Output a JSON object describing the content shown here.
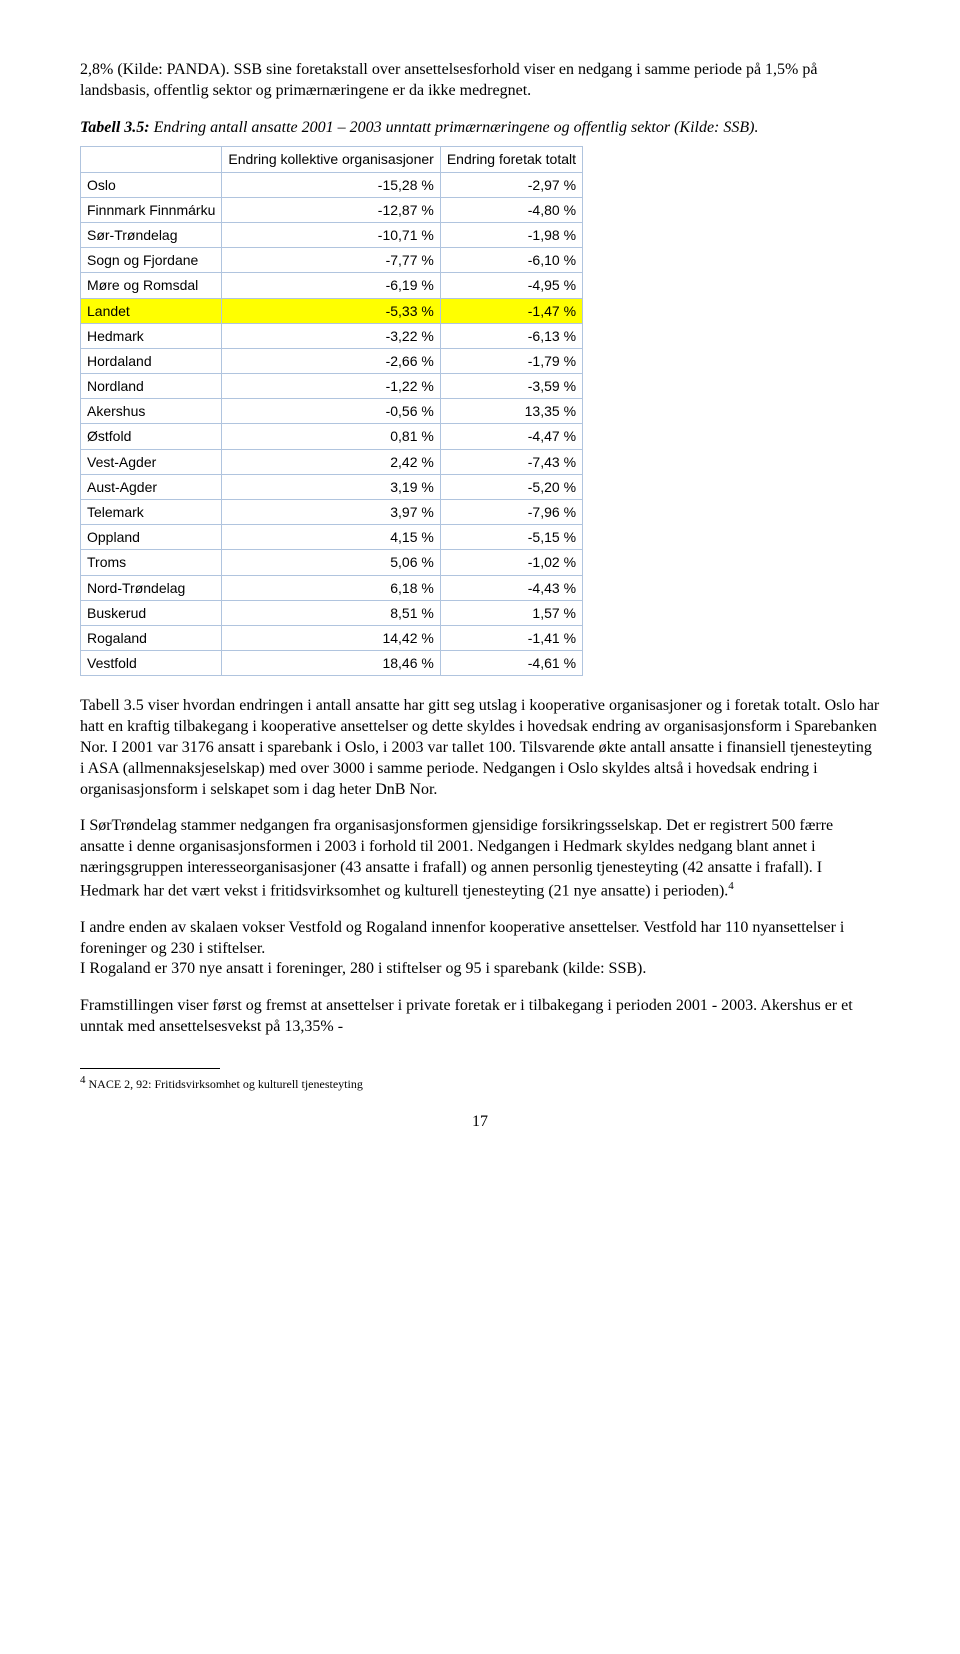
{
  "intro_para": "2,8% (Kilde: PANDA). SSB sine foretakstall over ansettelsesforhold viser en nedgang i samme periode på 1,5% på landsbasis, offentlig sektor og primærnæringene er da ikke medregnet.",
  "table_caption_bold": "Tabell 3.5:",
  "table_caption_rest": " Endring antall ansatte 2001 – 2003 unntatt primærnæringene og offentlig sektor (Kilde: SSB).",
  "table": {
    "col_headers": [
      "",
      "Endring kollektive organisasjoner",
      "Endring foretak totalt"
    ],
    "rows": [
      {
        "region": "Oslo",
        "col1": "-15,28 %",
        "col2": "-2,97 %",
        "hl": false
      },
      {
        "region": "Finnmark Finnmárku",
        "col1": "-12,87 %",
        "col2": "-4,80 %",
        "hl": false
      },
      {
        "region": "Sør-Trøndelag",
        "col1": "-10,71 %",
        "col2": "-1,98 %",
        "hl": false
      },
      {
        "region": "Sogn og Fjordane",
        "col1": "-7,77 %",
        "col2": "-6,10 %",
        "hl": false
      },
      {
        "region": "Møre og Romsdal",
        "col1": "-6,19 %",
        "col2": "-4,95 %",
        "hl": false
      },
      {
        "region": "Landet",
        "col1": "-5,33 %",
        "col2": "-1,47 %",
        "hl": true
      },
      {
        "region": "Hedmark",
        "col1": "-3,22 %",
        "col2": "-6,13 %",
        "hl": false
      },
      {
        "region": "Hordaland",
        "col1": "-2,66 %",
        "col2": "-1,79 %",
        "hl": false
      },
      {
        "region": "Nordland",
        "col1": "-1,22 %",
        "col2": "-3,59 %",
        "hl": false
      },
      {
        "region": "Akershus",
        "col1": "-0,56 %",
        "col2": "13,35 %",
        "hl": false
      },
      {
        "region": "Østfold",
        "col1": "0,81 %",
        "col2": "-4,47 %",
        "hl": false
      },
      {
        "region": "Vest-Agder",
        "col1": "2,42 %",
        "col2": "-7,43 %",
        "hl": false
      },
      {
        "region": "Aust-Agder",
        "col1": "3,19 %",
        "col2": "-5,20 %",
        "hl": false
      },
      {
        "region": "Telemark",
        "col1": "3,97 %",
        "col2": "-7,96 %",
        "hl": false
      },
      {
        "region": "Oppland",
        "col1": "4,15 %",
        "col2": "-5,15 %",
        "hl": false
      },
      {
        "region": "Troms",
        "col1": "5,06 %",
        "col2": "-1,02 %",
        "hl": false
      },
      {
        "region": "Nord-Trøndelag",
        "col1": "6,18 %",
        "col2": "-4,43 %",
        "hl": false
      },
      {
        "region": "Buskerud",
        "col1": "8,51 %",
        "col2": "1,57 %",
        "hl": false
      },
      {
        "region": "Rogaland",
        "col1": "14,42 %",
        "col2": "-1,41 %",
        "hl": false
      },
      {
        "region": "Vestfold",
        "col1": "18,46 %",
        "col2": "-4,61 %",
        "hl": false
      }
    ],
    "highlight_color": "#ffff00",
    "border_color": "#b0c4de",
    "font_size": 14
  },
  "para_after_table_part1": "Tabell 3.5 viser hvordan endringen i antall ansatte har gitt seg utslag i kooperative organisasjoner og i foretak totalt. Oslo har hatt en kraftig tilbakegang i kooperative ansettelser og dette skyldes i hovedsak endring av organisasjonsform i Sparebanken Nor. I 2001 var 3176 ansatt i sparebank i Oslo, i 2003 var tallet 100. Tilsvarende økte antall ansatte i finansiell tjenesteyting i ASA (allmennaksjeselskap) med over 3000 i samme periode. Nedgangen i Oslo skyldes altså i hovedsak endring i organisasjonsform i selskapet som i dag heter DnB Nor.",
  "para2": "I SørTrøndelag stammer nedgangen fra organisasjonsformen gjensidige forsikringsselskap. Det er registrert 500 færre ansatte i denne organisasjonsformen i 2003 i forhold til 2001. Nedgangen i Hedmark skyldes nedgang blant annet i næringsgruppen interesseorganisasjoner (43 ansatte i frafall) og annen personlig tjenesteyting (42 ansatte i frafall). I Hedmark har det vært vekst i fritidsvirksomhet og kulturell tjenesteyting (21 nye ansatte) i perioden).",
  "footnote_marker": "4",
  "para3": "I andre enden av skalaen vokser Vestfold og Rogaland innenfor kooperative ansettelser. Vestfold har 110 nyansettelser i foreninger og 230 i stiftelser.",
  "para3b": "I Rogaland er 370 nye ansatt i foreninger, 280 i stiftelser og 95 i sparebank (kilde: SSB).",
  "para4": "Framstillingen viser først og fremst at ansettelser i private foretak er i tilbakegang i perioden 2001 - 2003. Akershus er et unntak med ansettelsesvekst på 13,35% -",
  "footnote_text": " NACE 2, 92: Fritidsvirksomhet og kulturell tjenesteyting",
  "footnote_num": "4",
  "page_number": "17"
}
